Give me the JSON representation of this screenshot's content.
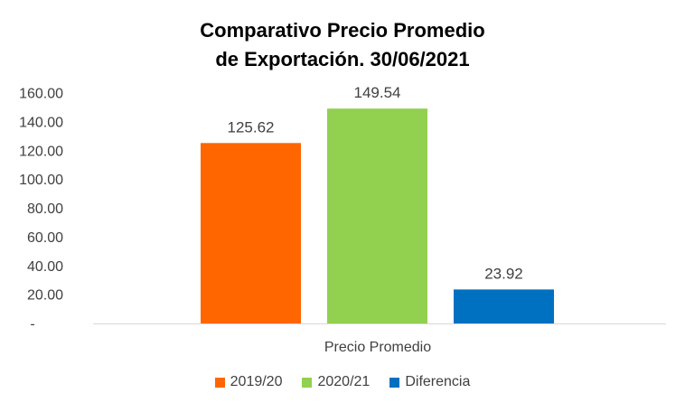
{
  "chart_data": {
    "type": "bar",
    "title_line1": "Comparativo Precio Promedio",
    "title_line2": "de Exportación. 30/06/2021",
    "categories": [
      "Precio Promedio"
    ],
    "series": [
      {
        "name": "2019/20",
        "value": 125.62,
        "label": "125.62",
        "color": "#FF6600"
      },
      {
        "name": "2020/21",
        "value": 149.54,
        "label": "149.54",
        "color": "#92D050"
      },
      {
        "name": "Diferencia",
        "value": 23.92,
        "label": "23.92",
        "color": "#0070C0"
      }
    ],
    "ylim": [
      0,
      160
    ],
    "yticks": [
      {
        "value": 160,
        "label": "160.00"
      },
      {
        "value": 140,
        "label": "140.00"
      },
      {
        "value": 120,
        "label": "120.00"
      },
      {
        "value": 100,
        "label": "100.00"
      },
      {
        "value": 80,
        "label": "80.00"
      },
      {
        "value": 60,
        "label": "60.00"
      },
      {
        "value": 40,
        "label": "40.00"
      },
      {
        "value": 20,
        "label": "20.00"
      },
      {
        "value": 0,
        "label": "-"
      }
    ],
    "grid": false,
    "legend_position": "bottom"
  }
}
